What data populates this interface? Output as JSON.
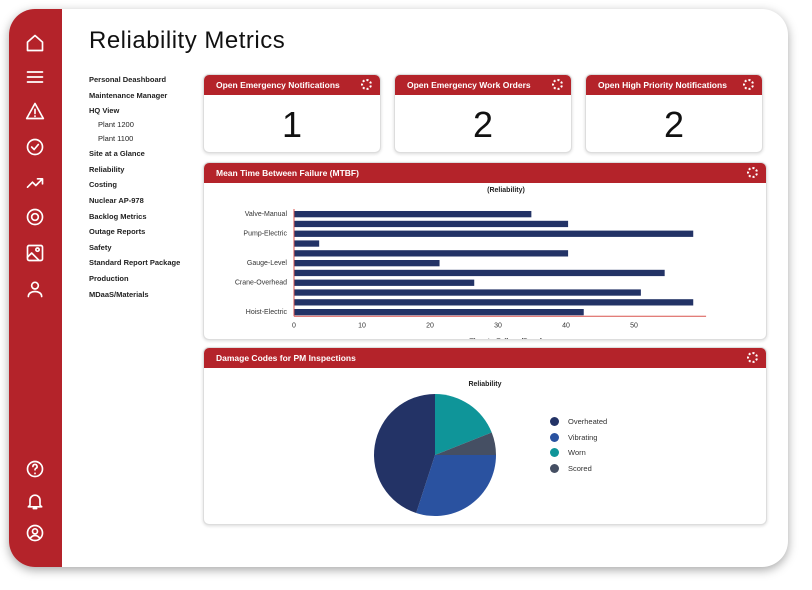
{
  "page_title": "Reliability Metrics",
  "nav": [
    "Personal Deashboard",
    "Maintenance Manager",
    "HQ View",
    "Plant 1200",
    "Plant 1100",
    "Site at a Glance",
    "Reliability",
    "Costing",
    "Nuclear AP-978",
    "Backlog Metrics",
    "Outage Reports",
    "Safety",
    "Standard Report Package",
    "Production",
    "MDaaS/Materials"
  ],
  "sidebar_icons": [
    "home-icon",
    "menu-icon",
    "warning-icon",
    "check-circle-icon",
    "trending-up-icon",
    "lifebuoy-icon",
    "image-icon",
    "user-icon",
    "help-icon",
    "bell-icon",
    "account-circle-icon"
  ],
  "cards": [
    {
      "title": "Open Emergency Notifications",
      "value": "1"
    },
    {
      "title": "Open Emergency Work Orders",
      "value": "2"
    },
    {
      "title": "Open High Priority Notifications",
      "value": "2"
    }
  ],
  "mtbf": {
    "title": "Mean Time Between Failure (MTBF)"
  },
  "damage": {
    "title": "Damage Codes for PM Inspections"
  },
  "colors": {
    "brand": "#b4232a",
    "bar": "#233366"
  },
  "chart_data": [
    {
      "type": "bar",
      "orientation": "horizontal",
      "title": "(Reliability)",
      "xlabel": "Time to Failure (Days)",
      "ylabel": "",
      "category_labels": [
        "Valve-Manual",
        "",
        "Pump-Electric",
        "",
        "",
        "Gauge-Level",
        "",
        "Crane-Overhead",
        "",
        "",
        "Hoist-Electric"
      ],
      "values": [
        34.9,
        40.3,
        58.7,
        3.7,
        40.3,
        21.4,
        54.5,
        26.5,
        51,
        58.7,
        42.6
      ],
      "xticks": [
        0,
        10,
        20,
        30,
        40,
        50
      ],
      "xlim": [
        0,
        60
      ],
      "grid": false
    },
    {
      "type": "pie",
      "title": "Reliability",
      "legend": "right",
      "slices": [
        {
          "name": "Worn",
          "value": 19,
          "color": "#0f9599"
        },
        {
          "name": "Scored",
          "value": 6,
          "color": "#454f63"
        },
        {
          "name": "Vibrating",
          "value": 30,
          "color": "#2a52a0"
        },
        {
          "name": "Overheated",
          "value": 45,
          "color": "#233366"
        }
      ],
      "legend_order": [
        "Overheated",
        "Vibrating",
        "Worn",
        "Scored"
      ]
    }
  ]
}
